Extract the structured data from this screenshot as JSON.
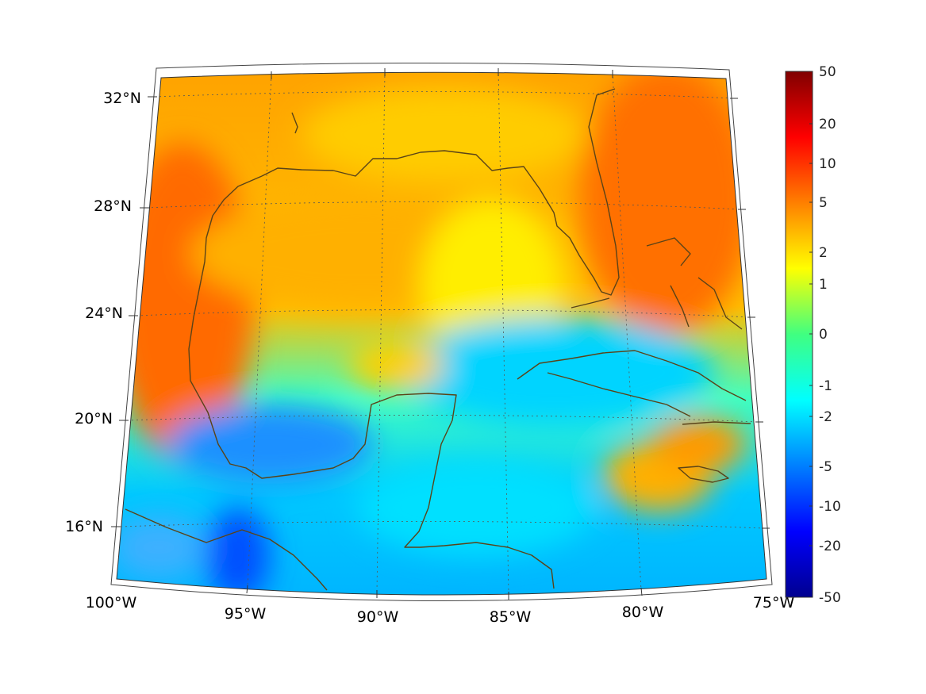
{
  "map": {
    "lat_labels": [
      "32°N",
      "28°N",
      "24°N",
      "20°N",
      "16°N"
    ],
    "lon_labels": [
      "100°W",
      "95°W",
      "90°W",
      "85°W",
      "80°W",
      "75°W"
    ],
    "lon_range": [
      -100,
      -75
    ],
    "lat_range": [
      14,
      33
    ],
    "projection": "conic",
    "grid": true,
    "coastline_color": "#5a4318"
  },
  "colorbar": {
    "tick_labels": [
      "50",
      "20",
      "10",
      "5",
      "2",
      "1",
      "0",
      "-1",
      "-2",
      "-5",
      "-10",
      "-20",
      "-50"
    ],
    "colormap": "jet",
    "placement": "right"
  }
}
